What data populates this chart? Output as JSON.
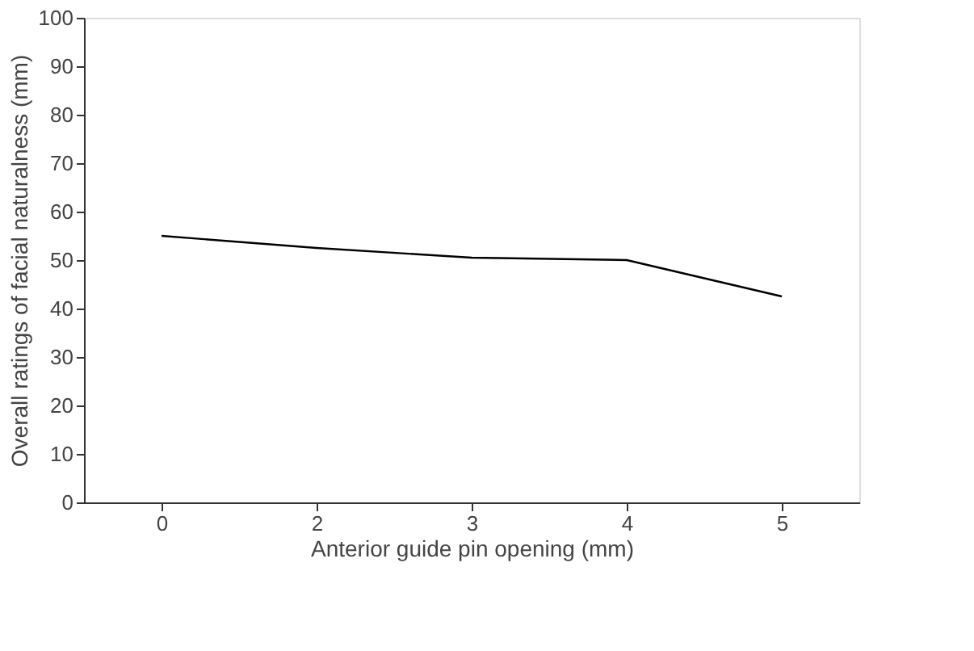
{
  "chart_data": {
    "type": "line",
    "xlabel": "Anterior guide pin opening (mm)",
    "ylabel": "Overall ratings of facial naturalness (mm)",
    "categories": [
      "0",
      "2",
      "3",
      "4",
      "5"
    ],
    "series": [
      {
        "color": "#000000",
        "values": [
          55,
          52.5,
          50.5,
          50,
          42.5
        ]
      }
    ],
    "ylim": [
      0,
      100
    ],
    "yticks": [
      0,
      10,
      20,
      30,
      40,
      50,
      60,
      70,
      80,
      90,
      100
    ],
    "grid": false,
    "legend": false,
    "marker": "none",
    "line_style": "solid"
  }
}
